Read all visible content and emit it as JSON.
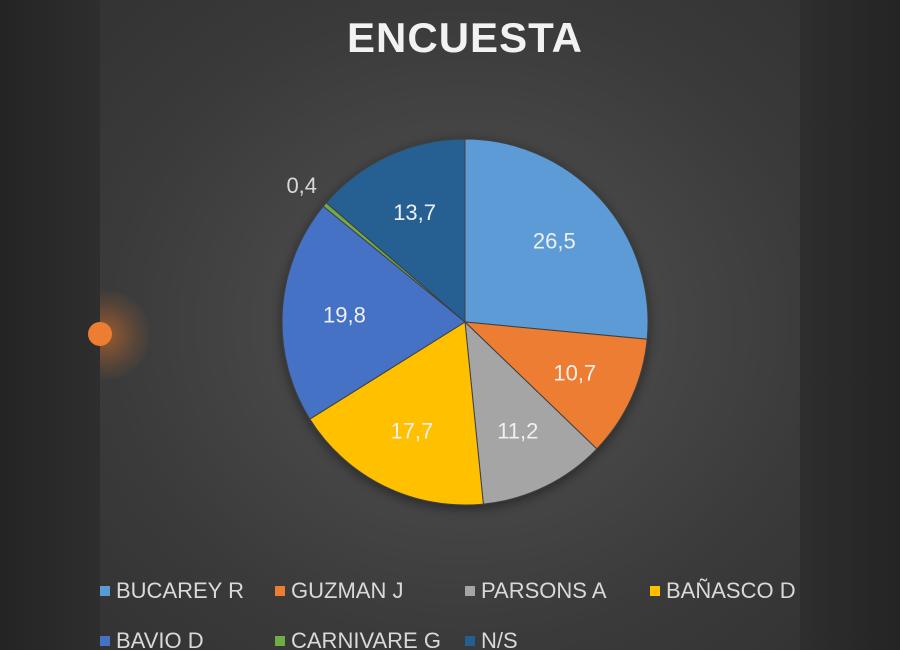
{
  "chart_data": {
    "type": "pie",
    "title": "ENCUESTA",
    "slices": [
      {
        "name": "BUCAREY R",
        "value": 26.5,
        "label": "26,5",
        "color": "#5b9bd5"
      },
      {
        "name": "GUZMAN J",
        "value": 10.7,
        "label": "10,7",
        "color": "#ed7d31"
      },
      {
        "name": "PARSONS A",
        "value": 11.2,
        "label": "11,2",
        "color": "#a5a5a5"
      },
      {
        "name": "BAÑASCO D",
        "value": 17.7,
        "label": "17,7",
        "color": "#ffc000"
      },
      {
        "name": "BAVIO D",
        "value": 19.8,
        "label": "19,8",
        "color": "#4472c4"
      },
      {
        "name": "CARNIVARE G",
        "value": 0.4,
        "label": "0,4",
        "color": "#70ad47"
      },
      {
        "name": "N/S",
        "value": 13.7,
        "label": "13,7",
        "color": "#255e91"
      }
    ],
    "legend_position": "bottom"
  }
}
